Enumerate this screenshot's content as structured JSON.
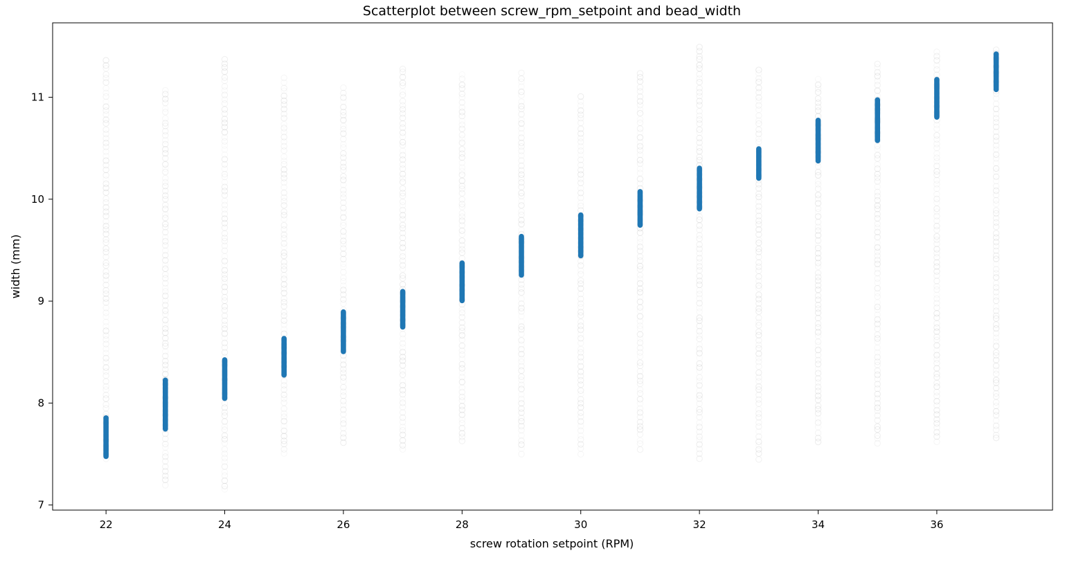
{
  "chart_data": {
    "type": "scatter",
    "title": "Scatterplot between screw_rpm_setpoint and bead_width",
    "xlabel": "screw rotation setpoint (RPM)",
    "ylabel": "width (mm)",
    "xlim": [
      21.1,
      37.95
    ],
    "ylim": [
      6.95,
      11.73
    ],
    "xticks": [
      22,
      24,
      26,
      28,
      30,
      32,
      34,
      36
    ],
    "yticks": [
      7,
      8,
      9,
      10,
      11
    ],
    "grid": false,
    "legend": "none",
    "colors": {
      "dense": "#1f77b4",
      "sparse": "#808080"
    },
    "series": [
      {
        "style": "dense",
        "points": [
          {
            "x": 22,
            "y_min": 7.45,
            "y_max": 7.88
          },
          {
            "x": 23,
            "y_min": 7.72,
            "y_max": 8.25
          },
          {
            "x": 24,
            "y_min": 8.02,
            "y_max": 8.45
          },
          {
            "x": 25,
            "y_min": 8.25,
            "y_max": 8.66
          },
          {
            "x": 26,
            "y_min": 8.48,
            "y_max": 8.92
          },
          {
            "x": 27,
            "y_min": 8.72,
            "y_max": 9.12
          },
          {
            "x": 28,
            "y_min": 8.98,
            "y_max": 9.4
          },
          {
            "x": 29,
            "y_min": 9.23,
            "y_max": 9.66
          },
          {
            "x": 30,
            "y_min": 9.42,
            "y_max": 9.87
          },
          {
            "x": 31,
            "y_min": 9.72,
            "y_max": 10.1
          },
          {
            "x": 32,
            "y_min": 9.88,
            "y_max": 10.33
          },
          {
            "x": 33,
            "y_min": 10.18,
            "y_max": 10.52
          },
          {
            "x": 34,
            "y_min": 10.35,
            "y_max": 10.8
          },
          {
            "x": 35,
            "y_min": 10.55,
            "y_max": 11.0
          },
          {
            "x": 36,
            "y_min": 10.78,
            "y_max": 11.2
          },
          {
            "x": 37,
            "y_min": 11.05,
            "y_max": 11.45
          }
        ]
      },
      {
        "style": "sparse",
        "points": [
          {
            "x": 22,
            "y_min": 7.45,
            "y_max": 11.4
          },
          {
            "x": 23,
            "y_min": 7.2,
            "y_max": 11.1
          },
          {
            "x": 24,
            "y_min": 7.15,
            "y_max": 11.4
          },
          {
            "x": 25,
            "y_min": 7.5,
            "y_max": 11.2
          },
          {
            "x": 26,
            "y_min": 7.62,
            "y_max": 11.1
          },
          {
            "x": 27,
            "y_min": 7.55,
            "y_max": 11.3
          },
          {
            "x": 28,
            "y_min": 7.62,
            "y_max": 11.25
          },
          {
            "x": 29,
            "y_min": 7.5,
            "y_max": 11.25
          },
          {
            "x": 30,
            "y_min": 7.5,
            "y_max": 11.05
          },
          {
            "x": 31,
            "y_min": 7.55,
            "y_max": 11.25
          },
          {
            "x": 32,
            "y_min": 7.45,
            "y_max": 11.5
          },
          {
            "x": 33,
            "y_min": 7.45,
            "y_max": 11.3
          },
          {
            "x": 34,
            "y_min": 7.62,
            "y_max": 11.2
          },
          {
            "x": 35,
            "y_min": 7.6,
            "y_max": 11.35
          },
          {
            "x": 36,
            "y_min": 7.62,
            "y_max": 11.45
          },
          {
            "x": 37,
            "y_min": 7.65,
            "y_max": 11.5
          }
        ]
      }
    ]
  }
}
